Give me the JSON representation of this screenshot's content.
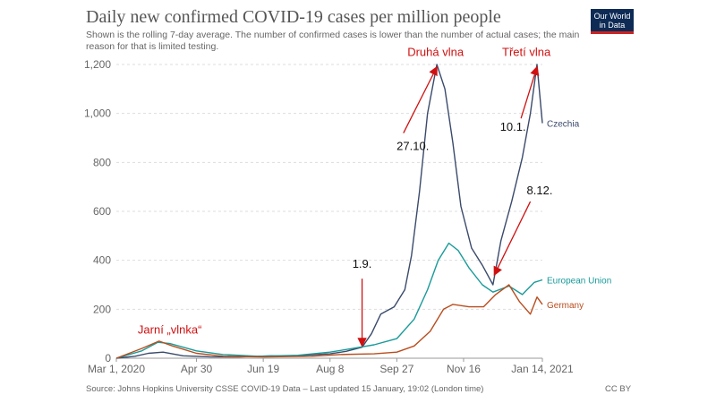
{
  "title": "Daily new confirmed COVID-19 cases per million people",
  "subtitle": "Shown is the rolling 7-day average. The number of confirmed cases is lower than the number of actual cases; the main reason for that is limited testing.",
  "logo": {
    "line1": "Our World",
    "line2": "in Data"
  },
  "footer": {
    "source": "Source: Johns Hopkins University CSSE COVID-19 Data – Last updated 15 January, 19:02 (London time)",
    "license": "CC BY"
  },
  "chart_data": {
    "type": "line",
    "x_unit": "date",
    "ylim": [
      0,
      1200
    ],
    "yticks": [
      0,
      200,
      400,
      600,
      800,
      1000,
      1200
    ],
    "ytick_labels": [
      "0",
      "200",
      "400",
      "600",
      "800",
      "1,000",
      "1,200"
    ],
    "xticks": [
      "2020-03-01",
      "2020-04-30",
      "2020-06-19",
      "2020-08-08",
      "2020-09-27",
      "2020-11-16",
      "2021-01-14"
    ],
    "xtick_labels": [
      "Mar 1, 2020",
      "Apr 30",
      "Jun 19",
      "Aug 8",
      "Sep 27",
      "Nov 16",
      "Jan 14, 2021"
    ],
    "grid": "horizontal dashed",
    "series": [
      {
        "name": "Czechia",
        "color": "#3a4a6b",
        "points": [
          [
            "2020-03-01",
            0
          ],
          [
            "2020-03-15",
            8
          ],
          [
            "2020-03-25",
            20
          ],
          [
            "2020-04-05",
            25
          ],
          [
            "2020-04-20",
            10
          ],
          [
            "2020-05-10",
            6
          ],
          [
            "2020-06-01",
            5
          ],
          [
            "2020-06-25",
            10
          ],
          [
            "2020-07-10",
            8
          ],
          [
            "2020-07-25",
            14
          ],
          [
            "2020-08-08",
            18
          ],
          [
            "2020-08-20",
            28
          ],
          [
            "2020-09-01",
            45
          ],
          [
            "2020-09-08",
            100
          ],
          [
            "2020-09-15",
            180
          ],
          [
            "2020-09-25",
            210
          ],
          [
            "2020-10-03",
            280
          ],
          [
            "2020-10-08",
            420
          ],
          [
            "2020-10-14",
            680
          ],
          [
            "2020-10-20",
            1000
          ],
          [
            "2020-10-27",
            1200
          ],
          [
            "2020-11-02",
            1100
          ],
          [
            "2020-11-08",
            880
          ],
          [
            "2020-11-14",
            620
          ],
          [
            "2020-11-22",
            450
          ],
          [
            "2020-11-30",
            380
          ],
          [
            "2020-12-08",
            300
          ],
          [
            "2020-12-14",
            480
          ],
          [
            "2020-12-22",
            640
          ],
          [
            "2020-12-30",
            820
          ],
          [
            "2021-01-05",
            1000
          ],
          [
            "2021-01-10",
            1200
          ],
          [
            "2021-01-14",
            960
          ]
        ]
      },
      {
        "name": "European Union",
        "color": "#1a9a9a",
        "points": [
          [
            "2020-03-01",
            0
          ],
          [
            "2020-03-20",
            30
          ],
          [
            "2020-04-01",
            65
          ],
          [
            "2020-04-10",
            60
          ],
          [
            "2020-04-30",
            30
          ],
          [
            "2020-05-20",
            15
          ],
          [
            "2020-06-15",
            8
          ],
          [
            "2020-07-15",
            12
          ],
          [
            "2020-08-08",
            25
          ],
          [
            "2020-08-25",
            40
          ],
          [
            "2020-09-10",
            55
          ],
          [
            "2020-09-27",
            80
          ],
          [
            "2020-10-10",
            160
          ],
          [
            "2020-10-20",
            280
          ],
          [
            "2020-10-28",
            400
          ],
          [
            "2020-11-05",
            470
          ],
          [
            "2020-11-12",
            440
          ],
          [
            "2020-11-20",
            370
          ],
          [
            "2020-11-30",
            300
          ],
          [
            "2020-12-08",
            270
          ],
          [
            "2020-12-20",
            295
          ],
          [
            "2020-12-30",
            260
          ],
          [
            "2021-01-08",
            310
          ],
          [
            "2021-01-14",
            320
          ]
        ]
      },
      {
        "name": "Germany",
        "color": "#b84d1e",
        "points": [
          [
            "2020-03-01",
            0
          ],
          [
            "2020-03-20",
            40
          ],
          [
            "2020-04-02",
            70
          ],
          [
            "2020-04-12",
            50
          ],
          [
            "2020-04-30",
            20
          ],
          [
            "2020-05-20",
            8
          ],
          [
            "2020-06-20",
            5
          ],
          [
            "2020-07-25",
            8
          ],
          [
            "2020-08-15",
            15
          ],
          [
            "2020-09-10",
            18
          ],
          [
            "2020-09-27",
            25
          ],
          [
            "2020-10-10",
            50
          ],
          [
            "2020-10-22",
            110
          ],
          [
            "2020-11-01",
            200
          ],
          [
            "2020-11-08",
            220
          ],
          [
            "2020-11-20",
            210
          ],
          [
            "2020-12-01",
            210
          ],
          [
            "2020-12-10",
            260
          ],
          [
            "2020-12-20",
            300
          ],
          [
            "2020-12-28",
            230
          ],
          [
            "2021-01-05",
            180
          ],
          [
            "2021-01-10",
            250
          ],
          [
            "2021-01-14",
            220
          ]
        ]
      }
    ],
    "annotations": [
      {
        "text": "Jarní „vlnka“",
        "color": "#d01010",
        "date": "2020-04-10",
        "y": 100
      },
      {
        "text": "1.9.",
        "color": "#111111",
        "date": "2020-09-01",
        "y": 370
      },
      {
        "text": "Druhá vlna",
        "color": "#d01010",
        "date": "2020-10-26",
        "y": 1235
      },
      {
        "text": "27.10.",
        "color": "#111111",
        "date": "2020-10-09",
        "y": 850
      },
      {
        "text": "Třetí vlna",
        "color": "#d01010",
        "date": "2021-01-02",
        "y": 1235
      },
      {
        "text": "10.1.",
        "color": "#111111",
        "date": "2020-12-23",
        "y": 930
      },
      {
        "text": "8.12.",
        "color": "#111111",
        "date": "2021-01-12",
        "y": 670
      }
    ],
    "arrows": [
      {
        "from": [
          "2020-09-01",
          325
        ],
        "to": [
          "2020-09-01",
          50
        ]
      },
      {
        "from": [
          "2020-10-02",
          920
        ],
        "to": [
          "2020-10-27",
          1190
        ]
      },
      {
        "from": [
          "2020-12-29",
          980
        ],
        "to": [
          "2021-01-10",
          1190
        ]
      },
      {
        "from": [
          "2021-01-05",
          640
        ],
        "to": [
          "2020-12-09",
          340
        ]
      }
    ]
  }
}
